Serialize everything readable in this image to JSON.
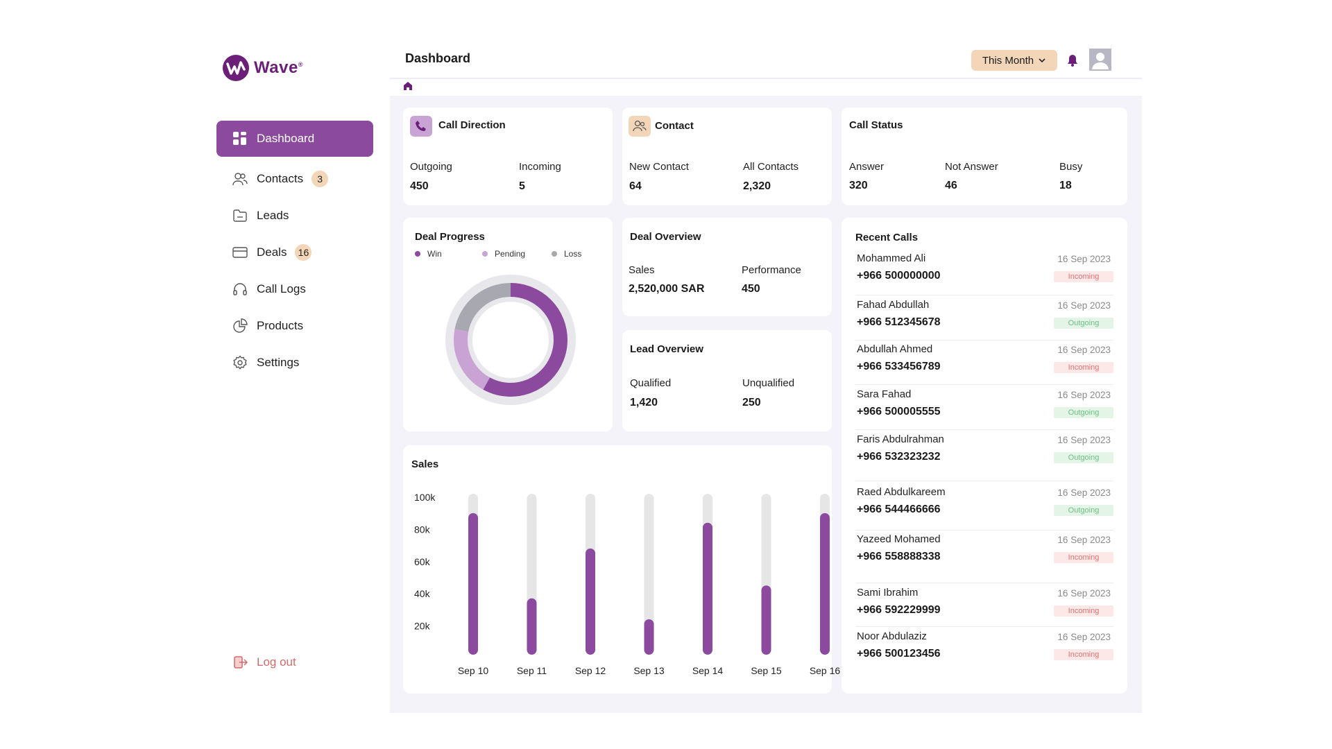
{
  "brand": {
    "name": "Wave",
    "mark": "®"
  },
  "sidebar": {
    "items": [
      {
        "label": "Dashboard",
        "icon": "grid-icon",
        "active": true
      },
      {
        "label": "Contacts",
        "icon": "users-icon",
        "badge": "3"
      },
      {
        "label": "Leads",
        "icon": "folder-icon"
      },
      {
        "label": "Deals",
        "icon": "card-icon",
        "badge": "16"
      },
      {
        "label": "Call Logs",
        "icon": "headphones-icon"
      },
      {
        "label": "Products",
        "icon": "pie-icon"
      },
      {
        "label": "Settings",
        "icon": "gear-icon"
      }
    ],
    "logout": "Log out"
  },
  "header": {
    "title": "Dashboard",
    "period": "This Month"
  },
  "call_direction": {
    "title": "Call Direction",
    "outgoing_label": "Outgoing",
    "outgoing": "450",
    "incoming_label": "Incoming",
    "incoming": "5"
  },
  "contact": {
    "title": "Contact",
    "new_label": "New Contact",
    "new": "64",
    "all_label": "All Contacts",
    "all": "2,320"
  },
  "call_status": {
    "title": "Call Status",
    "answer_label": "Answer",
    "answer": "320",
    "not_answer_label": "Not Answer",
    "not_answer": "46",
    "busy_label": "Busy",
    "busy": "18"
  },
  "deal_progress": {
    "title": "Deal Progress",
    "legend": [
      "Win",
      "Pending",
      "Loss"
    ],
    "colors": [
      "#8b4a9e",
      "#c9a3d4",
      "#a8a8b0"
    ],
    "fractions": [
      0.58,
      0.2,
      0.22
    ]
  },
  "deal_overview": {
    "title": "Deal Overview",
    "sales_label": "Sales",
    "sales": "2,520,000 SAR",
    "performance_label": "Performance",
    "performance": "450"
  },
  "lead_overview": {
    "title": "Lead Overview",
    "qualified_label": "Qualified",
    "qualified": "1,420",
    "unqualified_label": "Unqualified",
    "unqualified": "250"
  },
  "chart_data": {
    "type": "bar",
    "title": "Sales",
    "categories": [
      "Sep 10",
      "Sep 11",
      "Sep 12",
      "Sep 13",
      "Sep 14",
      "Sep 15",
      "Sep 16"
    ],
    "values": [
      88,
      35,
      66,
      22,
      82,
      43,
      88
    ],
    "yticks": [
      "100k",
      "80k",
      "60k",
      "40k",
      "20k"
    ],
    "ylim": [
      0,
      100
    ],
    "colors": {
      "bar": "#8b4a9e",
      "track": "#e6e6e6"
    }
  },
  "recent_calls": {
    "title": "Recent Calls",
    "items": [
      {
        "name": "Mohammed Ali",
        "phone": "+966 500000000",
        "date": "16 Sep 2023",
        "direction": "Incoming"
      },
      {
        "name": "Fahad Abdullah",
        "phone": "+966 512345678",
        "date": "16 Sep 2023",
        "direction": "Outgoing"
      },
      {
        "name": "Abdullah Ahmed",
        "phone": "+966 533456789",
        "date": "16 Sep 2023",
        "direction": "Incoming"
      },
      {
        "name": "Sara Fahad",
        "phone": "+966 500005555",
        "date": "16 Sep 2023",
        "direction": "Outgoing"
      },
      {
        "name": "Faris Abdulrahman",
        "phone": "+966 532323232",
        "date": "16 Sep 2023",
        "direction": "Outgoing"
      },
      {
        "name": "Raed Abdulkareem",
        "phone": "+966 544466666",
        "date": "16 Sep 2023",
        "direction": "Outgoing"
      },
      {
        "name": "Yazeed Mohamed",
        "phone": "+966 558888338",
        "date": "16 Sep 2023",
        "direction": "Incoming"
      },
      {
        "name": "Sami Ibrahim",
        "phone": "+966 592229999",
        "date": "16 Sep 2023",
        "direction": "Incoming"
      },
      {
        "name": "Noor Abdulaziz",
        "phone": "+966 500123456",
        "date": "16 Sep 2023",
        "direction": "Incoming"
      }
    ]
  },
  "colors": {
    "accent": "#8b4a9e",
    "badge": "#f3d6b8",
    "canvas": "#f4f3fa",
    "logout": "#d06b6b"
  }
}
